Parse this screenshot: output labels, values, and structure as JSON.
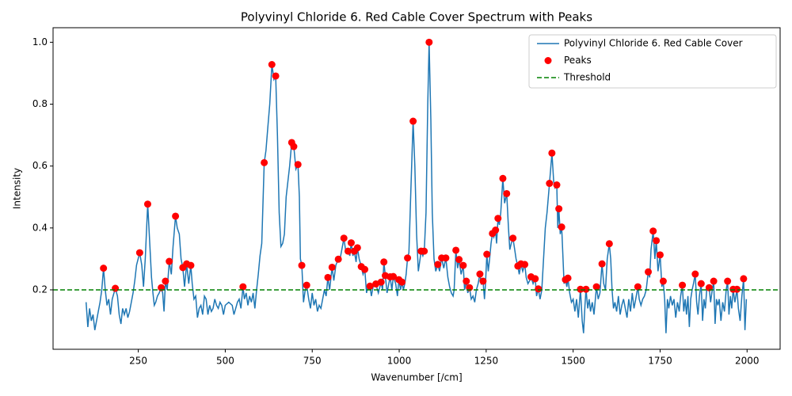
{
  "chart_data": {
    "type": "line",
    "title": "Polyvinyl Chloride 6. Red Cable Cover Spectrum with Peaks",
    "x_label": "Wavenumber [/cm]",
    "y_label": "Intensity",
    "xlim": [
      5,
      2095
    ],
    "ylim": [
      0.008,
      1.047
    ],
    "xticks": [
      250,
      500,
      750,
      1000,
      1250,
      1500,
      1750,
      2000
    ],
    "yticks": [
      0.2,
      0.4,
      0.6,
      0.8,
      {
        "value": 1.0,
        "label": "1.0"
      }
    ],
    "legend": "upper right",
    "series": [
      {
        "name": "Polyvinyl Chloride 6. Red Cable Cover",
        "kind": "line",
        "color": "#1f77b4",
        "x": [
          100,
          105,
          110,
          115,
          120,
          125,
          130,
          135,
          140,
          145,
          150,
          155,
          160,
          165,
          170,
          175,
          184,
          190,
          195,
          200,
          205,
          210,
          215,
          220,
          225,
          230,
          235,
          240,
          245,
          254,
          260,
          265,
          270,
          277,
          283,
          288,
          292,
          296,
          300,
          305,
          310,
          316,
          320,
          324,
          328,
          333,
          339,
          345,
          350,
          357,
          362,
          368,
          373,
          378,
          383,
          389,
          395,
          401,
          405,
          410,
          415,
          420,
          425,
          430,
          435,
          440,
          445,
          450,
          455,
          460,
          465,
          470,
          475,
          480,
          485,
          490,
          495,
          500,
          510,
          520,
          525,
          530,
          535,
          540,
          545,
          551,
          555,
          560,
          565,
          570,
          575,
          580,
          585,
          590,
          595,
          600,
          605,
          612,
          617,
          622,
          628,
          634,
          640,
          645,
          650,
          655,
          660,
          665,
          670,
          675,
          680,
          685,
          691,
          697,
          703,
          709,
          713,
          716,
          720,
          725,
          730,
          734,
          740,
          745,
          750,
          755,
          760,
          765,
          770,
          775,
          780,
          785,
          790,
          795,
          800,
          807,
          812,
          818,
          825,
          830,
          835,
          841,
          847,
          853,
          858,
          862,
          867,
          871,
          876,
          880,
          885,
          891,
          896,
          901,
          906,
          910,
          916,
          920,
          925,
          933,
          940,
          948,
          952,
          956,
          960,
          965,
          970,
          974,
          979,
          983,
          990,
          995,
          999,
          1004,
          1008,
          1012,
          1016,
          1020,
          1024,
          1028,
          1033,
          1040,
          1045,
          1050,
          1055,
          1060,
          1063,
          1068,
          1072,
          1077,
          1082,
          1086,
          1091,
          1095,
          1100,
          1105,
          1111,
          1116,
          1122,
          1128,
          1134,
          1140,
          1145,
          1150,
          1155,
          1158,
          1163,
          1168,
          1172,
          1178,
          1184,
          1188,
          1193,
          1197,
          1202,
          1207,
          1212,
          1217,
          1222,
          1227,
          1232,
          1236,
          1241,
          1245,
          1248,
          1252,
          1256,
          1260,
          1264,
          1268,
          1272,
          1277,
          1280,
          1284,
          1288,
          1292,
          1298,
          1303,
          1309,
          1314,
          1318,
          1322,
          1327,
          1332,
          1336,
          1341,
          1345,
          1350,
          1355,
          1361,
          1365,
          1370,
          1375,
          1379,
          1385,
          1391,
          1395,
          1400,
          1405,
          1410,
          1415,
          1420,
          1425,
          1432,
          1439,
          1444,
          1448,
          1453,
          1456,
          1459,
          1463,
          1467,
          1471,
          1474,
          1478,
          1482,
          1485,
          1490,
          1495,
          1500,
          1505,
          1510,
          1515,
          1521,
          1526,
          1530,
          1534,
          1537,
          1542,
          1546,
          1550,
          1555,
          1560,
          1567,
          1572,
          1577,
          1583,
          1588,
          1593,
          1598,
          1604,
          1608,
          1612,
          1616,
          1620,
          1625,
          1630,
          1635,
          1640,
          1645,
          1650,
          1655,
          1660,
          1665,
          1670,
          1675,
          1680,
          1686,
          1690,
          1695,
          1700,
          1705,
          1710,
          1716,
          1720,
          1724,
          1730,
          1735,
          1739,
          1744,
          1750,
          1755,
          1759,
          1763,
          1767,
          1771,
          1775,
          1780,
          1785,
          1790,
          1795,
          1800,
          1805,
          1809,
          1814,
          1818,
          1822,
          1826,
          1830,
          1834,
          1838,
          1842,
          1846,
          1851,
          1855,
          1859,
          1863,
          1868,
          1872,
          1876,
          1880,
          1884,
          1891,
          1895,
          1900,
          1904,
          1908,
          1912,
          1916,
          1920,
          1925,
          1930,
          1935,
          1940,
          1944,
          1948,
          1952,
          1956,
          1960,
          1965,
          1971,
          1975,
          1980,
          1985,
          1990,
          1994,
          1998
        ],
        "values": [
          0.16,
          0.08,
          0.14,
          0.1,
          0.12,
          0.07,
          0.1,
          0.13,
          0.16,
          0.2,
          0.27,
          0.2,
          0.15,
          0.17,
          0.12,
          0.17,
          0.205,
          0.18,
          0.12,
          0.09,
          0.14,
          0.12,
          0.14,
          0.11,
          0.13,
          0.16,
          0.19,
          0.23,
          0.28,
          0.32,
          0.28,
          0.21,
          0.3,
          0.477,
          0.35,
          0.24,
          0.19,
          0.15,
          0.16,
          0.18,
          0.19,
          0.207,
          0.19,
          0.13,
          0.228,
          0.2,
          0.292,
          0.25,
          0.34,
          0.438,
          0.4,
          0.38,
          0.3,
          0.272,
          0.21,
          0.284,
          0.22,
          0.279,
          0.22,
          0.17,
          0.18,
          0.11,
          0.14,
          0.15,
          0.12,
          0.18,
          0.17,
          0.12,
          0.15,
          0.13,
          0.14,
          0.17,
          0.15,
          0.14,
          0.16,
          0.15,
          0.12,
          0.15,
          0.16,
          0.15,
          0.12,
          0.14,
          0.16,
          0.17,
          0.14,
          0.21,
          0.17,
          0.19,
          0.15,
          0.18,
          0.16,
          0.19,
          0.14,
          0.2,
          0.25,
          0.31,
          0.35,
          0.611,
          0.65,
          0.72,
          0.8,
          0.928,
          0.88,
          0.891,
          0.7,
          0.45,
          0.34,
          0.35,
          0.38,
          0.5,
          0.55,
          0.6,
          0.676,
          0.663,
          0.59,
          0.605,
          0.5,
          0.3,
          0.279,
          0.16,
          0.2,
          0.215,
          0.17,
          0.14,
          0.19,
          0.15,
          0.17,
          0.13,
          0.15,
          0.14,
          0.17,
          0.2,
          0.18,
          0.24,
          0.2,
          0.273,
          0.23,
          0.28,
          0.299,
          0.3,
          0.33,
          0.367,
          0.32,
          0.325,
          0.31,
          0.352,
          0.31,
          0.325,
          0.29,
          0.336,
          0.3,
          0.275,
          0.25,
          0.266,
          0.19,
          0.21,
          0.212,
          0.18,
          0.21,
          0.219,
          0.19,
          0.225,
          0.2,
          0.29,
          0.246,
          0.19,
          0.22,
          0.242,
          0.2,
          0.243,
          0.22,
          0.18,
          0.233,
          0.2,
          0.225,
          0.2,
          0.22,
          0.25,
          0.303,
          0.32,
          0.5,
          0.745,
          0.6,
          0.38,
          0.26,
          0.3,
          0.325,
          0.31,
          0.325,
          0.45,
          0.8,
          1.0,
          0.75,
          0.45,
          0.3,
          0.26,
          0.282,
          0.26,
          0.303,
          0.27,
          0.303,
          0.24,
          0.21,
          0.19,
          0.18,
          0.2,
          0.328,
          0.27,
          0.298,
          0.25,
          0.279,
          0.2,
          0.228,
          0.19,
          0.207,
          0.17,
          0.18,
          0.16,
          0.2,
          0.22,
          0.251,
          0.22,
          0.228,
          0.17,
          0.22,
          0.315,
          0.26,
          0.3,
          0.35,
          0.382,
          0.37,
          0.393,
          0.35,
          0.431,
          0.41,
          0.45,
          0.56,
          0.48,
          0.511,
          0.4,
          0.33,
          0.35,
          0.367,
          0.33,
          0.3,
          0.277,
          0.25,
          0.284,
          0.26,
          0.282,
          0.24,
          0.22,
          0.23,
          0.242,
          0.22,
          0.236,
          0.18,
          0.203,
          0.17,
          0.2,
          0.3,
          0.4,
          0.45,
          0.544,
          0.642,
          0.55,
          0.53,
          0.539,
          0.4,
          0.462,
          0.38,
          0.403,
          0.3,
          0.22,
          0.233,
          0.21,
          0.238,
          0.19,
          0.16,
          0.17,
          0.13,
          0.17,
          0.11,
          0.202,
          0.1,
          0.06,
          0.15,
          0.202,
          0.14,
          0.17,
          0.13,
          0.16,
          0.12,
          0.21,
          0.17,
          0.19,
          0.284,
          0.22,
          0.2,
          0.3,
          0.349,
          0.3,
          0.2,
          0.14,
          0.16,
          0.13,
          0.18,
          0.12,
          0.15,
          0.17,
          0.14,
          0.11,
          0.17,
          0.13,
          0.19,
          0.14,
          0.17,
          0.21,
          0.17,
          0.15,
          0.17,
          0.18,
          0.2,
          0.258,
          0.24,
          0.33,
          0.39,
          0.3,
          0.359,
          0.26,
          0.313,
          0.21,
          0.228,
          0.17,
          0.06,
          0.17,
          0.14,
          0.18,
          0.15,
          0.17,
          0.11,
          0.16,
          0.13,
          0.18,
          0.215,
          0.13,
          0.17,
          0.12,
          0.18,
          0.08,
          0.17,
          0.2,
          0.22,
          0.251,
          0.16,
          0.12,
          0.18,
          0.22,
          0.1,
          0.17,
          0.14,
          0.2,
          0.207,
          0.16,
          0.2,
          0.228,
          0.09,
          0.17,
          0.15,
          0.17,
          0.1,
          0.16,
          0.13,
          0.2,
          0.228,
          0.12,
          0.18,
          0.14,
          0.202,
          0.16,
          0.202,
          0.14,
          0.1,
          0.18,
          0.236,
          0.07,
          0.17
        ]
      },
      {
        "name": "Peaks",
        "kind": "scatter",
        "color": "#ff0000",
        "x": [
          150,
          184,
          254,
          277,
          316,
          328,
          339,
          357,
          378,
          389,
          401,
          551,
          612,
          634,
          645,
          691,
          697,
          709,
          720,
          734,
          795,
          807,
          825,
          841,
          853,
          862,
          871,
          880,
          891,
          901,
          916,
          933,
          948,
          956,
          960,
          974,
          983,
          999,
          1008,
          1024,
          1040,
          1063,
          1072,
          1086,
          1111,
          1122,
          1134,
          1163,
          1172,
          1184,
          1193,
          1202,
          1232,
          1241,
          1252,
          1268,
          1277,
          1284,
          1298,
          1309,
          1327,
          1341,
          1350,
          1361,
          1379,
          1391,
          1400,
          1432,
          1439,
          1453,
          1459,
          1467,
          1478,
          1485,
          1521,
          1537,
          1567,
          1583,
          1604,
          1686,
          1716,
          1730,
          1739,
          1750,
          1759,
          1814,
          1851,
          1868,
          1891,
          1904,
          1944,
          1960,
          1971,
          1990
        ],
        "values": [
          0.27,
          0.205,
          0.32,
          0.477,
          0.207,
          0.228,
          0.292,
          0.438,
          0.272,
          0.284,
          0.279,
          0.21,
          0.611,
          0.928,
          0.891,
          0.676,
          0.663,
          0.605,
          0.279,
          0.215,
          0.24,
          0.273,
          0.299,
          0.367,
          0.325,
          0.352,
          0.325,
          0.336,
          0.275,
          0.266,
          0.212,
          0.219,
          0.225,
          0.29,
          0.246,
          0.242,
          0.243,
          0.233,
          0.225,
          0.303,
          0.745,
          0.325,
          0.325,
          1.0,
          0.282,
          0.303,
          0.303,
          0.328,
          0.298,
          0.279,
          0.228,
          0.207,
          0.251,
          0.228,
          0.315,
          0.382,
          0.393,
          0.431,
          0.56,
          0.511,
          0.367,
          0.277,
          0.284,
          0.282,
          0.242,
          0.236,
          0.203,
          0.544,
          0.642,
          0.539,
          0.462,
          0.403,
          0.233,
          0.238,
          0.202,
          0.202,
          0.21,
          0.284,
          0.349,
          0.21,
          0.258,
          0.39,
          0.359,
          0.313,
          0.228,
          0.215,
          0.251,
          0.22,
          0.207,
          0.228,
          0.228,
          0.202,
          0.202,
          0.236
        ]
      },
      {
        "name": "Threshold",
        "kind": "hline",
        "color": "#008000",
        "value": 0.2
      }
    ]
  }
}
